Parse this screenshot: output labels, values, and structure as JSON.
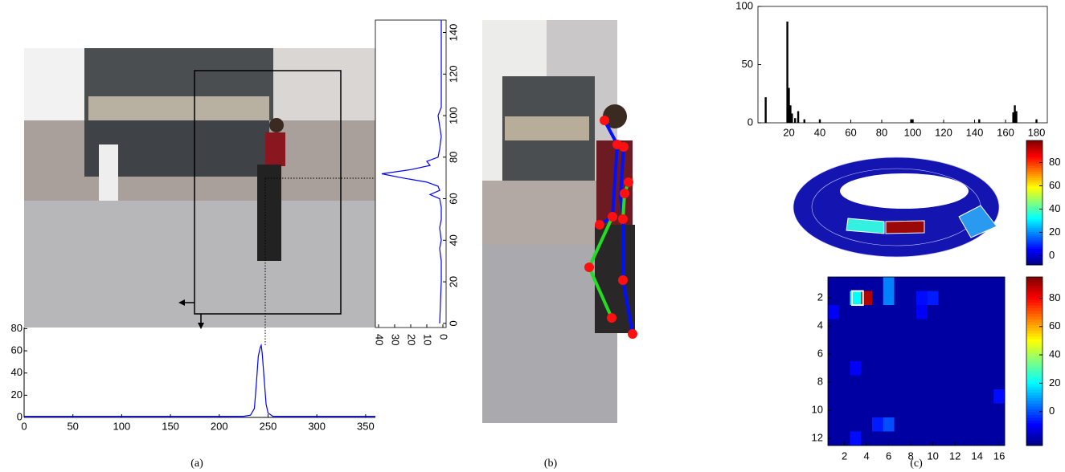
{
  "captions": [
    "(a)",
    "(b)",
    "(c)"
  ],
  "chart_data": [
    {
      "type": "line",
      "color": "#0000ff",
      "x": [
        0,
        50,
        100,
        150,
        200,
        225,
        232,
        236,
        238,
        240,
        242,
        243,
        244,
        246,
        248,
        250,
        255,
        270,
        300,
        360
      ],
      "values": [
        1,
        1,
        1,
        1,
        1,
        1,
        2,
        8,
        30,
        55,
        63,
        65,
        58,
        35,
        12,
        4,
        1,
        1,
        1,
        1
      ],
      "xlim": [
        0,
        360
      ],
      "ylim": [
        0,
        81
      ],
      "xticks": [
        0,
        50,
        100,
        150,
        200,
        250,
        300,
        350
      ],
      "yticks": [
        0,
        20,
        40,
        60,
        80
      ]
    },
    {
      "type": "line",
      "rotated": true,
      "color": "#0000ff",
      "x": [
        0,
        20,
        30,
        36,
        40,
        46,
        50,
        56,
        60,
        62,
        64,
        66,
        68,
        70,
        72,
        74,
        76,
        78,
        80,
        84,
        90,
        100,
        104,
        110,
        140,
        146
      ],
      "values": [
        2,
        1,
        1,
        2,
        1,
        2,
        1,
        1,
        2,
        8,
        2,
        3,
        10,
        25,
        38,
        20,
        8,
        10,
        3,
        2,
        1,
        3,
        1,
        1,
        1,
        1
      ],
      "xlim": [
        -2,
        146
      ],
      "ylim": [
        -2,
        42
      ],
      "xticks": [
        0,
        20,
        40,
        60,
        80,
        100,
        120,
        140
      ],
      "yticks": [
        0,
        10,
        20,
        30,
        40
      ]
    },
    {
      "type": "bar",
      "color": "#000000",
      "x": [
        5,
        19,
        20,
        21,
        22,
        24,
        26,
        30,
        40,
        99,
        100,
        143,
        165,
        166,
        167,
        180
      ],
      "values": [
        22,
        87,
        30,
        15,
        8,
        4,
        10,
        3,
        3,
        3,
        3,
        3,
        9,
        15,
        10,
        3
      ],
      "xlim": [
        0,
        187
      ],
      "ylim": [
        0,
        100
      ],
      "xticks": [
        20,
        40,
        60,
        80,
        100,
        120,
        140,
        160,
        180
      ],
      "yticks": [
        0,
        50,
        100
      ]
    },
    {
      "type": "colorbar",
      "clim": [
        -8,
        99
      ],
      "cticks": [
        0,
        20,
        40,
        60,
        80
      ]
    },
    {
      "type": "heatmap",
      "clim": [
        -24,
        95
      ],
      "cticks": [
        0,
        20,
        40,
        60,
        80
      ],
      "xticks": [
        2,
        4,
        6,
        8,
        10,
        12,
        14,
        16
      ],
      "yticks": [
        2,
        4,
        6,
        8,
        10,
        12
      ],
      "values": [
        [
          -20,
          -20,
          -20,
          -20,
          -20,
          6,
          -20,
          -20,
          -20,
          -20,
          -20,
          -20,
          -20,
          -20,
          -20,
          -20
        ],
        [
          -20,
          -20,
          21,
          89,
          -20,
          6,
          -20,
          -20,
          -8,
          -6,
          -20,
          -20,
          -20,
          -20,
          -20,
          -20
        ],
        [
          -10,
          -20,
          -20,
          -20,
          -20,
          -20,
          -20,
          -20,
          -10,
          -20,
          -20,
          -20,
          -20,
          -20,
          -20,
          -20
        ],
        [
          -20,
          -20,
          -20,
          -20,
          -20,
          -20,
          -20,
          -20,
          -20,
          -20,
          -20,
          -20,
          -20,
          -20,
          -20,
          -20
        ],
        [
          -20,
          -20,
          -20,
          -20,
          -20,
          -20,
          -20,
          -20,
          -20,
          -20,
          -20,
          -20,
          -20,
          -20,
          -20,
          -20
        ],
        [
          -20,
          -20,
          -20,
          -20,
          -20,
          -20,
          -20,
          -20,
          -20,
          -20,
          -20,
          -20,
          -20,
          -20,
          -20,
          -20
        ],
        [
          -20,
          -20,
          -10,
          -20,
          -20,
          -20,
          -20,
          -20,
          -20,
          -20,
          -20,
          -20,
          -20,
          -20,
          -20,
          -20
        ],
        [
          -20,
          -20,
          -20,
          -20,
          -20,
          -20,
          -20,
          -20,
          -20,
          -20,
          -20,
          -20,
          -20,
          -20,
          -20,
          -20
        ],
        [
          -20,
          -20,
          -20,
          -20,
          -20,
          -20,
          -20,
          -20,
          -20,
          -20,
          -20,
          -20,
          -20,
          -20,
          -20,
          -8
        ],
        [
          -20,
          -20,
          -20,
          -20,
          -20,
          -20,
          -20,
          -20,
          -20,
          -20,
          -20,
          -20,
          -20,
          -20,
          -20,
          -20
        ],
        [
          -20,
          -20,
          -20,
          -20,
          -6,
          0,
          -20,
          -20,
          -20,
          -20,
          -20,
          -20,
          -20,
          -20,
          -20,
          -20
        ],
        [
          -20,
          -20,
          -8,
          -20,
          -20,
          -20,
          -20,
          -20,
          -20,
          -20,
          -20,
          -20,
          -20,
          -20,
          -20,
          -20
        ]
      ]
    }
  ]
}
